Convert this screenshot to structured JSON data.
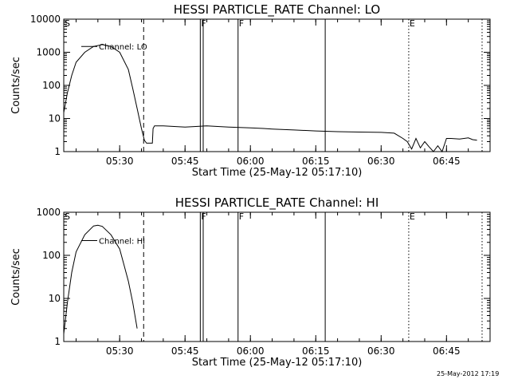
{
  "footer_date": "25-May-2012 17:19",
  "chart_data": [
    {
      "type": "line",
      "title": "HESSI PARTICLE_RATE Channel: LO",
      "xlabel": "Start Time (25-May-12 05:17:10)",
      "ylabel": "Counts/sec",
      "yscale": "log",
      "xlim": [
        "05:17:10",
        "06:55:00"
      ],
      "ylim": [
        1,
        10000
      ],
      "xticks": [
        "05:30",
        "05:45",
        "06:00",
        "06:15",
        "06:30",
        "06:45"
      ],
      "yticks": [
        "1",
        "10",
        "100",
        "1000",
        "10000"
      ],
      "series_label": "Channel: LO",
      "markers": [
        {
          "label": "S",
          "time": "05:17:10",
          "style": "solid"
        },
        {
          "label": "",
          "time": "05:35:30",
          "style": "dashed"
        },
        {
          "label": "F",
          "time": "05:48:30",
          "style": "solid"
        },
        {
          "label": "",
          "time": "05:49:10",
          "style": "solid"
        },
        {
          "label": "F",
          "time": "05:57:10",
          "style": "solid"
        },
        {
          "label": "",
          "time": "06:17:10",
          "style": "solid"
        },
        {
          "label": "E",
          "time": "06:36:20",
          "style": "dotted"
        },
        {
          "label": "",
          "time": "06:53:10",
          "style": "dotted"
        }
      ],
      "x": [
        "05:17:10",
        "05:18:00",
        "05:19:00",
        "05:20:00",
        "05:22:00",
        "05:24:00",
        "05:26:00",
        "05:28:00",
        "05:30:00",
        "05:32:00",
        "05:33:00",
        "05:34:00",
        "05:35:00",
        "05:35:40",
        "05:36:10",
        "05:37:30",
        "05:37:40",
        "05:38:00",
        "05:40:00",
        "05:45:00",
        "05:50:00",
        "05:55:00",
        "06:00:00",
        "06:03:00",
        "06:05:00",
        "06:10:00",
        "06:15:00",
        "06:20:00",
        "06:25:00",
        "06:30:00",
        "06:33:00",
        "06:35:00",
        "06:36:00",
        "06:37:00",
        "06:38:00",
        "06:39:00",
        "06:40:00",
        "06:41:00",
        "06:42:00",
        "06:43:00",
        "06:44:00",
        "06:45:00",
        "06:46:00",
        "06:48:00",
        "06:50:00",
        "06:51:00",
        "06:52:00"
      ],
      "y": [
        15,
        60,
        200,
        500,
        1000,
        1500,
        1700,
        1500,
        1000,
        300,
        80,
        20,
        5,
        2.2,
        1.8,
        1.8,
        5,
        6,
        6,
        5.5,
        6,
        5.5,
        5.2,
        5,
        4.8,
        4.5,
        4.2,
        4,
        3.9,
        3.8,
        3.6,
        2.5,
        2,
        1.2,
        2.5,
        1.3,
        2,
        1.4,
        1,
        1.5,
        1,
        2.5,
        2.5,
        2.4,
        2.6,
        2.3,
        2.2
      ]
    },
    {
      "type": "line",
      "title": "HESSI PARTICLE_RATE Channel: HI",
      "xlabel": "Start Time (25-May-12 05:17:10)",
      "ylabel": "Counts/sec",
      "yscale": "log",
      "xlim": [
        "05:17:10",
        "06:55:00"
      ],
      "ylim": [
        1,
        1000
      ],
      "xticks": [
        "05:30",
        "05:45",
        "06:00",
        "06:15",
        "06:30",
        "06:45"
      ],
      "yticks": [
        "1",
        "10",
        "100",
        "1000"
      ],
      "series_label": "Channel: HI",
      "markers": [
        {
          "label": "S",
          "time": "05:17:10",
          "style": "solid"
        },
        {
          "label": "",
          "time": "05:35:30",
          "style": "dashed"
        },
        {
          "label": "F",
          "time": "05:48:30",
          "style": "solid"
        },
        {
          "label": "",
          "time": "05:49:10",
          "style": "solid"
        },
        {
          "label": "F",
          "time": "05:57:10",
          "style": "solid"
        },
        {
          "label": "",
          "time": "06:17:10",
          "style": "solid"
        },
        {
          "label": "E",
          "time": "06:36:20",
          "style": "dotted"
        },
        {
          "label": "",
          "time": "06:53:10",
          "style": "dotted"
        }
      ],
      "x": [
        "05:17:10",
        "05:18:00",
        "05:19:00",
        "05:20:00",
        "05:22:00",
        "05:24:00",
        "05:25:00",
        "05:26:00",
        "05:28:00",
        "05:30:00",
        "05:31:00",
        "05:32:00",
        "05:33:00",
        "05:34:00"
      ],
      "y": [
        1.5,
        8,
        40,
        120,
        300,
        480,
        500,
        470,
        300,
        140,
        60,
        25,
        8,
        2
      ]
    }
  ]
}
